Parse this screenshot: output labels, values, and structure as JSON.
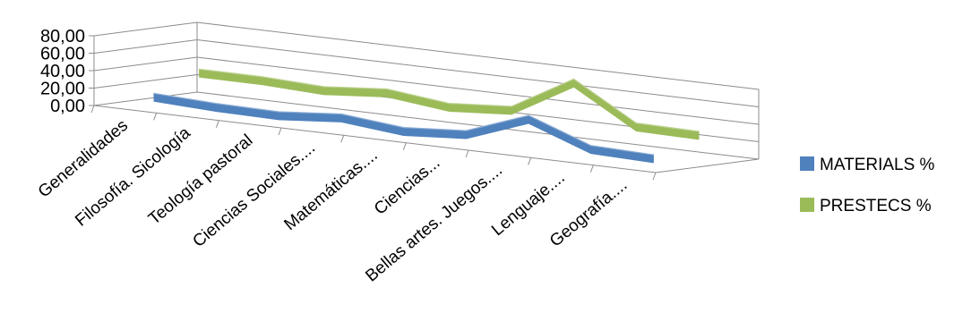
{
  "chart_data": {
    "type": "line",
    "style": "3d",
    "categories": [
      "Generalidades",
      "Filosofía. Sicología",
      "Teología pastoral",
      "Ciencias Sociales....",
      "Matemáticas....",
      "Ciencias...",
      "Bellas artes. Juegos....",
      "Lenguaje....",
      "Geografía...."
    ],
    "ylim": [
      0,
      80
    ],
    "yticks": [
      "0,00",
      "20,00",
      "40,00",
      "60,00",
      "80,00"
    ],
    "grid": true,
    "legend_position": "right",
    "series": [
      {
        "name": "MATERIALS %",
        "color": "#4f81bd",
        "values": [
          14,
          11,
          10,
          16,
          9,
          14,
          40,
          14,
          12
        ]
      },
      {
        "name": "PRESTECS %",
        "color": "#9bbb59",
        "values": [
          35,
          35,
          32,
          38,
          30,
          35,
          75,
          33,
          32
        ]
      }
    ]
  }
}
